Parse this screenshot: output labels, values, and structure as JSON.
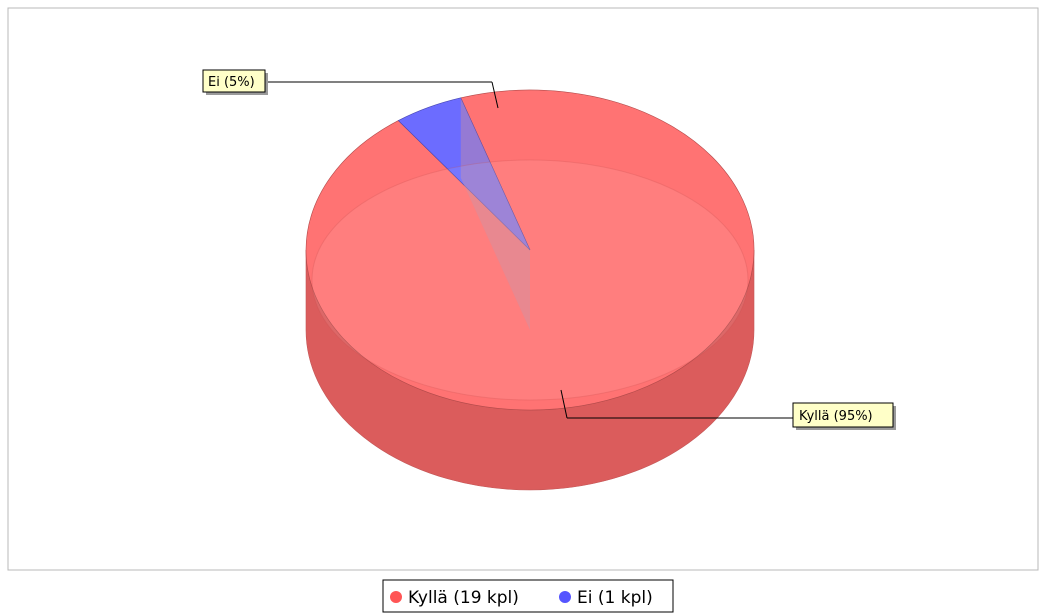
{
  "chart_data": {
    "type": "pie",
    "title": "",
    "slices": [
      {
        "label": "Kyllä",
        "percent_label": "Kyllä (95%)",
        "legend_label": "Kyllä (19 kpl)",
        "count": 19,
        "percent": 95,
        "color": "#ff6b6b"
      },
      {
        "label": "Ei",
        "percent_label": "Ei (5%)",
        "legend_label": "Ei (1 kpl)",
        "count": 1,
        "percent": 5,
        "color": "#6464ff"
      }
    ],
    "legend_position": "bottom",
    "style": "3d"
  }
}
